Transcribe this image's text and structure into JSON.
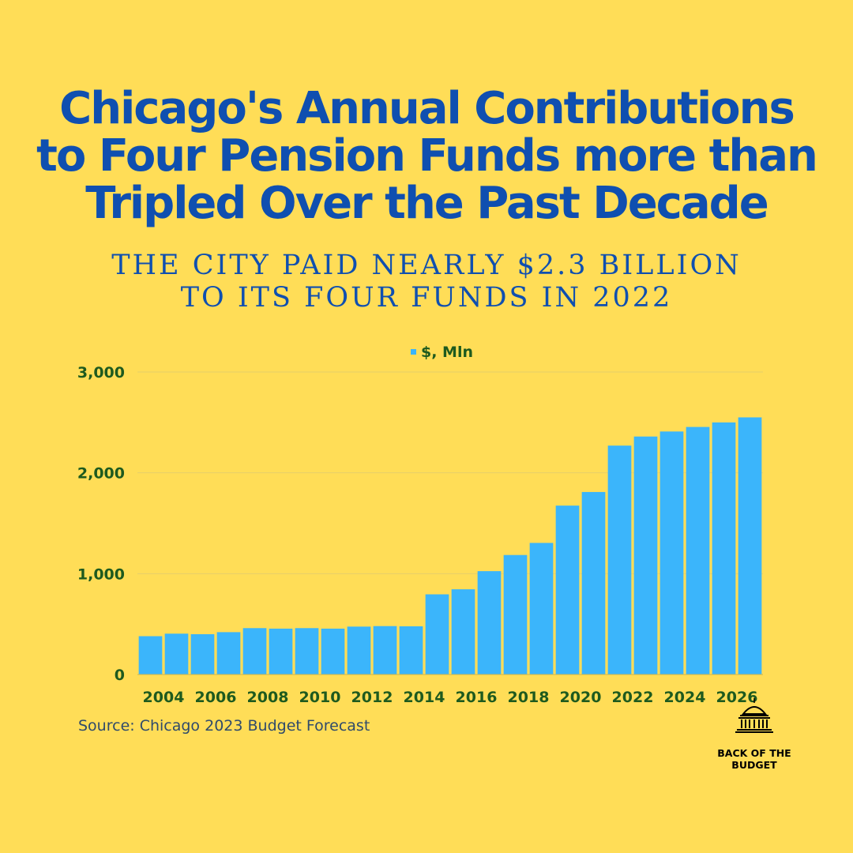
{
  "title": {
    "lines": [
      "Chicago's Annual Contributions",
      "to Four Pension Funds more than",
      "Tripled Over the Past Decade"
    ]
  },
  "subtitle": {
    "lines": [
      "THE CITY PAID NEARLY $2.3 BILLION",
      "TO ITS FOUR FUNDS IN 2022"
    ]
  },
  "colors": {
    "background": "#FFDD57",
    "title": "#0F4FB0",
    "bar": "#3BB5FB",
    "axis_text": "#1E5A1E"
  },
  "chart_data": {
    "type": "bar",
    "categories": [
      "2004",
      "2005",
      "2006",
      "2007",
      "2008",
      "2009",
      "2010",
      "2011",
      "2012",
      "2013",
      "2014",
      "2015",
      "2016",
      "2017",
      "2018",
      "2019",
      "2020",
      "2021",
      "2022",
      "2023",
      "2024",
      "2025",
      "2026",
      "2027"
    ],
    "x_tick_labels": [
      "2004",
      "2006",
      "2008",
      "2010",
      "2012",
      "2014",
      "2016",
      "2018",
      "2020",
      "2022",
      "2024",
      "2026"
    ],
    "series": [
      {
        "name": "$, Mln",
        "values": [
          380,
          405,
          400,
          420,
          460,
          455,
          460,
          455,
          475,
          480,
          478,
          795,
          845,
          1025,
          1185,
          1305,
          1675,
          1810,
          2270,
          2360,
          2410,
          2455,
          2500,
          2550
        ]
      }
    ],
    "ylim": [
      0,
      3000
    ],
    "y_ticks": [
      0,
      1000,
      2000,
      3000
    ],
    "y_tick_labels": [
      "0",
      "1,000",
      "2,000",
      "3,000"
    ],
    "grid": true,
    "legend": "top-center"
  },
  "source": "Source: Chicago 2023 Budget Forecast",
  "logo": {
    "lines": [
      "BACK OF THE",
      "BUDGET"
    ],
    "icon": "capitol-dome-icon"
  }
}
